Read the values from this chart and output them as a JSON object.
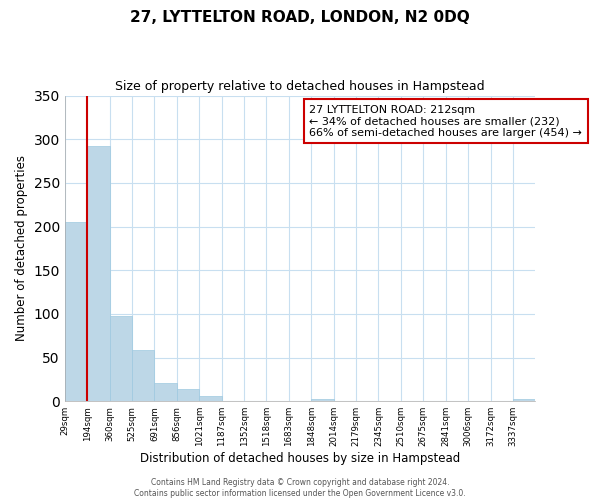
{
  "title": "27, LYTTELTON ROAD, LONDON, N2 0DQ",
  "subtitle": "Size of property relative to detached houses in Hampstead",
  "xlabel": "Distribution of detached houses by size in Hampstead",
  "ylabel": "Number of detached properties",
  "bar_labels": [
    "29sqm",
    "194sqm",
    "360sqm",
    "525sqm",
    "691sqm",
    "856sqm",
    "1021sqm",
    "1187sqm",
    "1352sqm",
    "1518sqm",
    "1683sqm",
    "1848sqm",
    "2014sqm",
    "2179sqm",
    "2345sqm",
    "2510sqm",
    "2675sqm",
    "2841sqm",
    "3006sqm",
    "3172sqm",
    "3337sqm"
  ],
  "bar_heights": [
    205,
    292,
    98,
    59,
    21,
    14,
    6,
    0,
    0,
    0,
    0,
    2,
    0,
    0,
    0,
    0,
    0,
    0,
    0,
    0,
    3
  ],
  "bar_color": "#bdd7e7",
  "bar_edge_color": "#9ec9e0",
  "grid_color": "#c8dff0",
  "annotation_text_line1": "27 LYTTELTON ROAD: 212sqm",
  "annotation_text_line2": "← 34% of detached houses are smaller (232)",
  "annotation_text_line3": "66% of semi-detached houses are larger (454) →",
  "annotation_box_color": "white",
  "annotation_box_edge": "#cc0000",
  "property_line_color": "#cc0000",
  "ylim": [
    0,
    350
  ],
  "yticks": [
    0,
    50,
    100,
    150,
    200,
    250,
    300,
    350
  ],
  "footer_line1": "Contains HM Land Registry data © Crown copyright and database right 2024.",
  "footer_line2": "Contains public sector information licensed under the Open Government Licence v3.0."
}
